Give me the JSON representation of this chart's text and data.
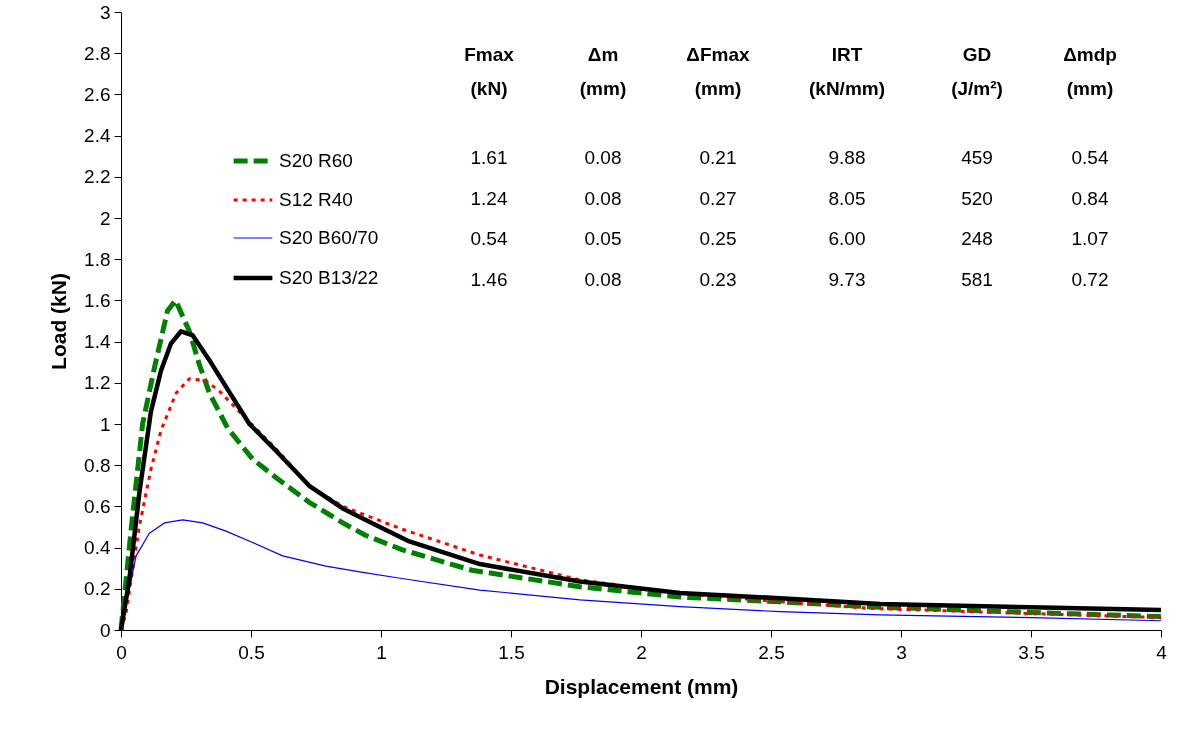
{
  "chart_data": {
    "type": "line",
    "xlabel": "Displacement (mm)",
    "ylabel": "Load (kN)",
    "xlim": [
      0,
      4
    ],
    "xticks": [
      0,
      0.5,
      1,
      1.5,
      2,
      2.5,
      3,
      3.5,
      4
    ],
    "ylim": [
      0,
      3
    ],
    "yticks": [
      0,
      0.2,
      0.4,
      0.6,
      0.8,
      1,
      1.2,
      1.4,
      1.6,
      1.8,
      2,
      2.2,
      2.4,
      2.6,
      2.8,
      3
    ],
    "grid": false,
    "legend": "top left",
    "series": [
      {
        "name": "S20 R60",
        "color": "#008000",
        "line_style": "dashed",
        "x": [
          0,
          0.04,
          0.083,
          0.128,
          0.179,
          0.21,
          0.263,
          0.301,
          0.34,
          0.41,
          0.506,
          0.596,
          0.724,
          0.853,
          0.94,
          1.08,
          1.35,
          1.765,
          2.15,
          2.535,
          2.87,
          3.5,
          4
        ],
        "values": [
          0,
          0.5,
          1.0,
          1.27,
          1.55,
          1.6,
          1.45,
          1.29,
          1.15,
          0.98,
          0.83,
          0.74,
          0.62,
          0.52,
          0.46,
          0.39,
          0.29,
          0.21,
          0.16,
          0.137,
          0.113,
          0.085,
          0.065
        ]
      },
      {
        "name": "S12 R40",
        "color": "#ff0000",
        "line_style": "dotted",
        "x": [
          0,
          0.019,
          0.07,
          0.115,
          0.154,
          0.212,
          0.263,
          0.327,
          0.378,
          0.494,
          0.596,
          0.724,
          0.853,
          1.08,
          1.38,
          1.765,
          2.15,
          2.535,
          2.88,
          3.5,
          4
        ],
        "values": [
          0,
          0.08,
          0.5,
          0.78,
          0.97,
          1.15,
          1.22,
          1.21,
          1.16,
          1.01,
          0.88,
          0.7,
          0.6,
          0.49,
          0.364,
          0.243,
          0.178,
          0.137,
          0.105,
          0.08,
          0.06
        ]
      },
      {
        "name": "S20 B60/70",
        "color": "#0000ff",
        "line_style": "solid",
        "x": [
          0,
          0.058,
          0.109,
          0.167,
          0.237,
          0.314,
          0.404,
          0.506,
          0.622,
          0.788,
          0.93,
          1.08,
          1.38,
          1.765,
          2.15,
          2.535,
          2.92,
          3.5,
          4
        ],
        "values": [
          0,
          0.36,
          0.47,
          0.52,
          0.535,
          0.52,
          0.48,
          0.425,
          0.36,
          0.31,
          0.28,
          0.25,
          0.194,
          0.146,
          0.113,
          0.089,
          0.073,
          0.06,
          0.045
        ]
      },
      {
        "name": "S20 B13/22",
        "color": "#000000",
        "line_style": "solid",
        "x": [
          0,
          0.032,
          0.071,
          0.115,
          0.154,
          0.192,
          0.231,
          0.276,
          0.34,
          0.404,
          0.494,
          0.596,
          0.724,
          0.853,
          0.98,
          1.109,
          1.38,
          1.765,
          2.15,
          2.535,
          2.92,
          3.5,
          4
        ],
        "values": [
          0,
          0.245,
          0.67,
          1.06,
          1.26,
          1.39,
          1.45,
          1.43,
          1.31,
          1.18,
          1.0,
          0.87,
          0.7,
          0.59,
          0.51,
          0.43,
          0.32,
          0.235,
          0.18,
          0.154,
          0.126,
          0.11,
          0.097
        ]
      }
    ],
    "annotations": [
      "Fmax\n(kN)",
      "Δm\n(mm)",
      "ΔFmax\n(mm)",
      "IRT\n(kN/mm)",
      "GD\n(J/m²)",
      "Δmdp\n(mm)",
      "1.61",
      "0.08",
      "0.21",
      "9.88",
      "459",
      "0.54",
      "1.24",
      "0.08",
      "0.27",
      "8.05",
      "520",
      "0.84",
      "0.54",
      "0.05",
      "0.25",
      "6.00",
      "248",
      "1.07",
      "1.46",
      "0.08",
      "0.23",
      "9.73",
      "581",
      "0.72"
    ]
  }
}
